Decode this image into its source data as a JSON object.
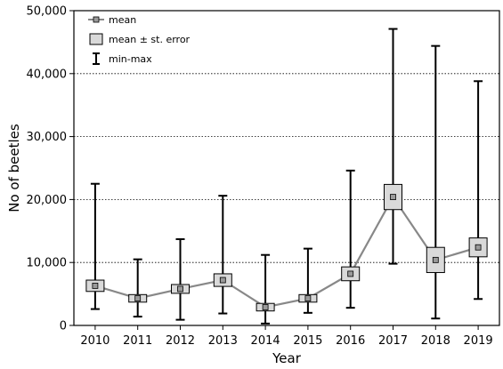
{
  "chart_data": {
    "type": "box",
    "xlabel": "Year",
    "ylabel": "No of beetles",
    "ylim": [
      0,
      50000
    ],
    "yticks": [
      0,
      10000,
      20000,
      30000,
      40000,
      50000
    ],
    "ytick_labels": [
      "0",
      "10,000",
      "20,000",
      "30,000",
      "40,000",
      "50,000"
    ],
    "grid": "horizontal dotted",
    "legend_position": "top-left",
    "legend": [
      {
        "key": "mean",
        "label": "mean"
      },
      {
        "key": "se",
        "label": "mean ± st. error"
      },
      {
        "key": "minmax",
        "label": "min-max"
      }
    ],
    "categories": [
      "2010",
      "2011",
      "2012",
      "2013",
      "2014",
      "2015",
      "2016",
      "2017",
      "2018",
      "2019"
    ],
    "mean": [
      6300,
      4300,
      5800,
      7200,
      2900,
      4300,
      8200,
      20400,
      10400,
      12400
    ],
    "se_low": [
      5400,
      3700,
      5100,
      6200,
      2300,
      3700,
      7100,
      18400,
      8400,
      10900
    ],
    "se_high": [
      7200,
      4900,
      6500,
      8200,
      3500,
      4900,
      9300,
      22400,
      12400,
      13900
    ],
    "min": [
      2600,
      1400,
      900,
      1900,
      300,
      2000,
      2800,
      9800,
      1100,
      4200
    ],
    "max": [
      22500,
      10500,
      13700,
      20600,
      11200,
      12200,
      24600,
      47100,
      44400,
      38800
    ],
    "colors": {
      "line": "#888888",
      "box_fill": "#d9d9d9",
      "mean_marker": "#9a9a9a",
      "whisker": "#000000"
    }
  }
}
